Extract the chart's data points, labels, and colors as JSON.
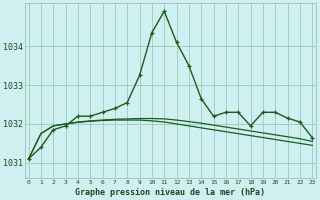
{
  "title": "Graphe pression niveau de la mer (hPa)",
  "background_color": "#cff0f0",
  "grid_color": "#99ccbb",
  "line_color": "#1a5c1a",
  "x_labels": [
    "0",
    "1",
    "2",
    "3",
    "4",
    "5",
    "6",
    "7",
    "8",
    "9",
    "10",
    "11",
    "12",
    "13",
    "14",
    "15",
    "16",
    "17",
    "18",
    "19",
    "20",
    "21",
    "22",
    "23"
  ],
  "y_min": 1030.6,
  "y_max": 1035.1,
  "y_ticks": [
    1031,
    1032,
    1033,
    1034
  ],
  "series1": [
    1031.1,
    1031.4,
    1031.85,
    1031.95,
    1032.2,
    1032.2,
    1032.3,
    1032.4,
    1032.55,
    1033.25,
    1034.35,
    1034.9,
    1034.1,
    1033.5,
    1032.65,
    1032.2,
    1032.3,
    1032.3,
    1031.95,
    1032.3,
    1032.3,
    1032.15,
    1032.05,
    1031.65
  ],
  "series2": [
    1031.1,
    1031.75,
    1031.95,
    1032.0,
    1032.05,
    1032.08,
    1032.1,
    1032.12,
    1032.13,
    1032.14,
    1032.14,
    1032.13,
    1032.1,
    1032.06,
    1032.02,
    1031.97,
    1031.92,
    1031.87,
    1031.82,
    1031.77,
    1031.72,
    1031.67,
    1031.62,
    1031.55
  ],
  "series3": [
    1031.1,
    1031.75,
    1031.95,
    1032.0,
    1032.04,
    1032.07,
    1032.09,
    1032.1,
    1032.1,
    1032.1,
    1032.08,
    1032.05,
    1032.0,
    1031.95,
    1031.9,
    1031.85,
    1031.8,
    1031.75,
    1031.7,
    1031.65,
    1031.6,
    1031.55,
    1031.5,
    1031.45
  ]
}
